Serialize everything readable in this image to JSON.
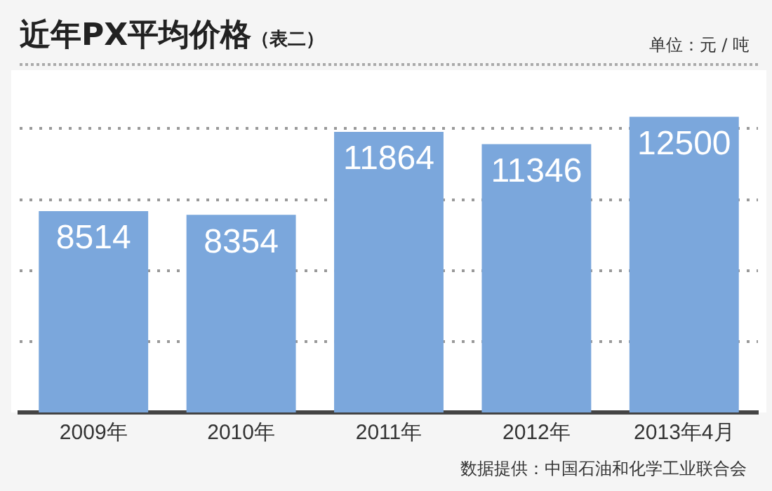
{
  "chart_data": {
    "type": "bar",
    "title": "近年PX平均价格",
    "subtitle": "（表二）",
    "ylabel": "单位：元 / 吨",
    "categories": [
      "2009年",
      "2010年",
      "2011年",
      "2012年",
      "2013年4月"
    ],
    "values": [
      8514,
      8354,
      11864,
      11346,
      12500
    ],
    "color": "#7ba7dc",
    "yticks": [
      {
        "value": 3000,
        "label": null
      },
      {
        "value": 6000,
        "label": null
      },
      {
        "value": 9000,
        "label": null
      },
      {
        "value": 12000,
        "label": null
      }
    ],
    "tick_labels": "x",
    "grid": "y",
    "data_labels": true,
    "annotations": [
      "数据提供：中国石油和化学工业联合会"
    ]
  }
}
